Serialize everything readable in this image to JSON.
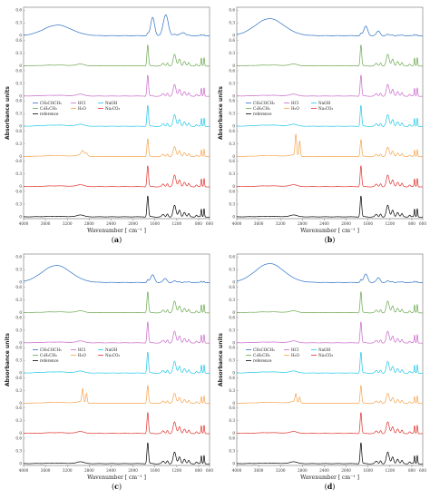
{
  "figure": {
    "panels": [
      {
        "id": "a",
        "label_open": "(",
        "label_letter": "a",
        "label_close": ")",
        "legend_order": [
          "CH3COCH3",
          "HCl",
          "NaOH",
          "C2H5CH3",
          "H2O",
          "Na2CO3",
          "reference"
        ]
      },
      {
        "id": "b",
        "label_open": "(",
        "label_letter": "b",
        "label_close": ")",
        "legend_order": [
          "CH3COCH3",
          "HCl",
          "NaOH",
          "C2H5CH3",
          "H2O",
          "Na2CO3",
          "reference"
        ]
      },
      {
        "id": "c",
        "label_open": "(",
        "label_letter": "c",
        "label_close": ")",
        "legend_order": [
          "CH3COCH3",
          "HCl",
          "NaOH",
          "C2H5CH3",
          "H2O",
          "Na2CO3",
          "reference"
        ]
      },
      {
        "id": "d",
        "label_open": "(",
        "label_letter": "d",
        "label_close": ")",
        "legend_order": [
          "CH3COCH3",
          "HCl",
          "NaOH",
          "C2H5CH3",
          "H2O",
          "Na2CO3",
          "reference"
        ]
      }
    ]
  },
  "chart_data": {
    "type": "line",
    "xlabel": "Wavenumber [ cm⁻¹ ]",
    "ylabel": "Absorbance units",
    "xlim": [
      4000,
      600
    ],
    "x_reversed": true,
    "x_ticks": [
      4000,
      3600,
      3200,
      2800,
      2400,
      2000,
      1600,
      1200,
      800,
      600
    ],
    "x_tick_labels": [
      "4000",
      "3600",
      "3200",
      "2800",
      "2400",
      "2000",
      "1600",
      "1200",
      "800",
      "600"
    ],
    "stacked_offsets": true,
    "y_tick_labels_per_trace": [
      "0",
      "0.3",
      "0.6"
    ],
    "legend": {
      "placement": "middle-left",
      "entries": [
        {
          "key": "CH3COCH3",
          "label": "CH₃COCH₃",
          "color": "#2b6fc4"
        },
        {
          "key": "C2H5CH3",
          "label": "C₂H₅CH₃",
          "color": "#6aa84f"
        },
        {
          "key": "reference",
          "label": "reference",
          "color": "#000000"
        },
        {
          "key": "HCl",
          "label": "HCl",
          "color": "#c967c9"
        },
        {
          "key": "H2O",
          "label": "H₂O",
          "color": "#f7a24a"
        },
        {
          "key": "NaOH",
          "label": "NaOH",
          "color": "#1ec7e8"
        },
        {
          "key": "Na2CO3",
          "label": "Na₂CO₃",
          "color": "#e0302b"
        }
      ]
    },
    "trace_order_top_to_bottom": [
      "CH3COCH3",
      "C2H5CH3",
      "HCl",
      "NaOH",
      "H2O",
      "Na2CO3",
      "reference"
    ],
    "colors": {
      "CH3COCH3": "#2b6fc4",
      "C2H5CH3": "#6aa84f",
      "HCl": "#c967c9",
      "NaOH": "#1ec7e8",
      "H2O": "#f7a24a",
      "Na2CO3": "#e0302b",
      "reference": "#000000"
    },
    "peaks": {
      "reference": [
        {
          "x": 2960,
          "y": 0.05,
          "w": 60
        },
        {
          "x": 1730,
          "y": 0.55,
          "w": 14
        },
        {
          "x": 1450,
          "y": 0.06,
          "w": 20
        },
        {
          "x": 1370,
          "y": 0.08,
          "w": 15
        },
        {
          "x": 1240,
          "y": 0.3,
          "w": 25
        },
        {
          "x": 1150,
          "y": 0.18,
          "w": 20
        },
        {
          "x": 1060,
          "y": 0.12,
          "w": 20
        },
        {
          "x": 980,
          "y": 0.08,
          "w": 15
        },
        {
          "x": 840,
          "y": 0.05,
          "w": 15
        },
        {
          "x": 750,
          "y": 0.2,
          "w": 8
        },
        {
          "x": 700,
          "y": 0.22,
          "w": 8
        }
      ]
    },
    "panels": [
      {
        "id": "a",
        "series": [
          {
            "name": "CH3COCH3",
            "broad_oh": {
              "x": 3380,
              "y": 0.28,
              "w": 250
            },
            "extra": [
              {
                "x": 1640,
                "y": 0.48,
                "w": 35
              },
              {
                "x": 1400,
                "y": 0.55,
                "w": 45
              },
              {
                "x": 1090,
                "y": 0.08,
                "w": 40
              }
            ],
            "ref_scale": 0.1
          },
          {
            "name": "C2H5CH3",
            "broad_oh": {
              "x": 3400,
              "y": 0.02,
              "w": 250
            },
            "extra": [],
            "ref_scale": 1.0
          },
          {
            "name": "HCl",
            "broad_oh": {
              "x": 3400,
              "y": 0.02,
              "w": 250
            },
            "extra": [],
            "ref_scale": 1.0
          },
          {
            "name": "NaOH",
            "broad_oh": {
              "x": 3400,
              "y": 0.03,
              "w": 250
            },
            "extra": [],
            "ref_scale": 1.0
          },
          {
            "name": "H2O",
            "broad_oh": {
              "x": 3400,
              "y": 0.02,
              "w": 250
            },
            "extra": [
              {
                "x": 2920,
                "y": 0.12,
                "w": 25
              },
              {
                "x": 2850,
                "y": 0.08,
                "w": 20
              }
            ],
            "ref_scale": 0.85
          },
          {
            "name": "Na2CO3",
            "broad_oh": {
              "x": 3400,
              "y": 0.02,
              "w": 250
            },
            "extra": [],
            "ref_scale": 1.0
          },
          {
            "name": "reference",
            "broad_oh": {
              "x": 3400,
              "y": 0.01,
              "w": 250
            },
            "extra": [],
            "ref_scale": 1.0
          }
        ]
      },
      {
        "id": "b",
        "series": [
          {
            "name": "CH3COCH3",
            "broad_oh": {
              "x": 3400,
              "y": 0.45,
              "w": 260
            },
            "extra": [
              {
                "x": 1640,
                "y": 0.25,
                "w": 35
              },
              {
                "x": 1410,
                "y": 0.12,
                "w": 30
              }
            ],
            "ref_scale": 0.1
          },
          {
            "name": "C2H5CH3",
            "broad_oh": {
              "x": 3400,
              "y": 0.02,
              "w": 250
            },
            "extra": [],
            "ref_scale": 1.0
          },
          {
            "name": "HCl",
            "broad_oh": {
              "x": 3400,
              "y": 0.02,
              "w": 250
            },
            "extra": [],
            "ref_scale": 1.0
          },
          {
            "name": "NaOH",
            "broad_oh": {
              "x": 3400,
              "y": 0.03,
              "w": 250
            },
            "extra": [],
            "ref_scale": 1.0
          },
          {
            "name": "H2O",
            "broad_oh": {
              "x": 3400,
              "y": 0.02,
              "w": 250
            },
            "extra": [
              {
                "x": 2920,
                "y": 0.55,
                "w": 14
              },
              {
                "x": 2850,
                "y": 0.4,
                "w": 12
              }
            ],
            "ref_scale": 0.8
          },
          {
            "name": "Na2CO3",
            "broad_oh": {
              "x": 3400,
              "y": 0.02,
              "w": 250
            },
            "extra": [],
            "ref_scale": 1.0
          },
          {
            "name": "reference",
            "broad_oh": {
              "x": 3400,
              "y": 0.01,
              "w": 250
            },
            "extra": [],
            "ref_scale": 1.0
          }
        ]
      },
      {
        "id": "c",
        "series": [
          {
            "name": "CH3COCH3",
            "broad_oh": {
              "x": 3400,
              "y": 0.45,
              "w": 260
            },
            "extra": [
              {
                "x": 1640,
                "y": 0.2,
                "w": 35
              },
              {
                "x": 1410,
                "y": 0.1,
                "w": 30
              }
            ],
            "ref_scale": 0.12
          },
          {
            "name": "C2H5CH3",
            "broad_oh": {
              "x": 3400,
              "y": 0.02,
              "w": 250
            },
            "extra": [],
            "ref_scale": 1.0
          },
          {
            "name": "HCl",
            "broad_oh": {
              "x": 3400,
              "y": 0.02,
              "w": 250
            },
            "extra": [],
            "ref_scale": 1.0
          },
          {
            "name": "NaOH",
            "broad_oh": {
              "x": 3400,
              "y": 0.03,
              "w": 250
            },
            "extra": [],
            "ref_scale": 1.0
          },
          {
            "name": "H2O",
            "broad_oh": {
              "x": 3400,
              "y": 0.02,
              "w": 250
            },
            "extra": [
              {
                "x": 2920,
                "y": 0.35,
                "w": 14
              },
              {
                "x": 2850,
                "y": 0.25,
                "w": 12
              }
            ],
            "ref_scale": 0.85
          },
          {
            "name": "Na2CO3",
            "broad_oh": {
              "x": 3400,
              "y": 0.02,
              "w": 250
            },
            "extra": [],
            "ref_scale": 1.0
          },
          {
            "name": "reference",
            "broad_oh": {
              "x": 3400,
              "y": 0.01,
              "w": 250
            },
            "extra": [],
            "ref_scale": 1.0
          }
        ]
      },
      {
        "id": "d",
        "series": [
          {
            "name": "CH3COCH3",
            "broad_oh": {
              "x": 3400,
              "y": 0.5,
              "w": 260
            },
            "extra": [
              {
                "x": 1640,
                "y": 0.22,
                "w": 35
              },
              {
                "x": 1410,
                "y": 0.12,
                "w": 30
              }
            ],
            "ref_scale": 0.12
          },
          {
            "name": "C2H5CH3",
            "broad_oh": {
              "x": 3400,
              "y": 0.02,
              "w": 250
            },
            "extra": [],
            "ref_scale": 1.0
          },
          {
            "name": "HCl",
            "broad_oh": {
              "x": 3400,
              "y": 0.02,
              "w": 250
            },
            "extra": [],
            "ref_scale": 1.0
          },
          {
            "name": "NaOH",
            "broad_oh": {
              "x": 3400,
              "y": 0.03,
              "w": 250
            },
            "extra": [],
            "ref_scale": 1.0
          },
          {
            "name": "H2O",
            "broad_oh": {
              "x": 3400,
              "y": 0.02,
              "w": 250
            },
            "extra": [
              {
                "x": 2920,
                "y": 0.22,
                "w": 14
              },
              {
                "x": 2850,
                "y": 0.15,
                "w": 12
              }
            ],
            "ref_scale": 0.85
          },
          {
            "name": "Na2CO3",
            "broad_oh": {
              "x": 3400,
              "y": 0.02,
              "w": 250
            },
            "extra": [],
            "ref_scale": 1.0
          },
          {
            "name": "reference",
            "broad_oh": {
              "x": 3400,
              "y": 0.01,
              "w": 250
            },
            "extra": [],
            "ref_scale": 1.0
          }
        ]
      }
    ]
  }
}
